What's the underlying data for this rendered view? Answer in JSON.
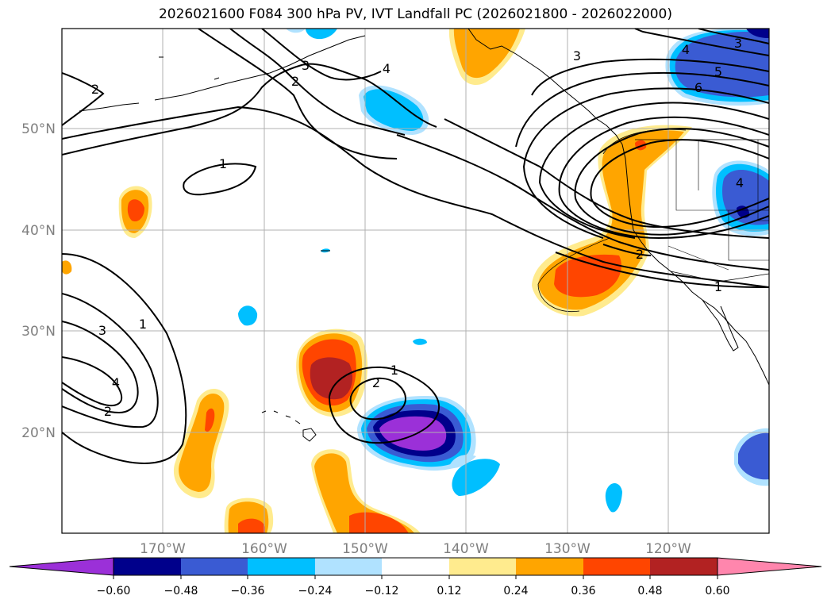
{
  "title": "2026021600 F084 300 hPa PV, IVT Landfall PC (2026021800 - 2026022000)",
  "map": {
    "lat_labels": [
      "50°N",
      "40°N",
      "30°N",
      "20°N"
    ],
    "lon_labels": [
      "170°W",
      "160°W",
      "150°W",
      "140°W",
      "130°W",
      "120°W"
    ],
    "contour_labels": [
      "2",
      "3",
      "2",
      "4",
      "3",
      "3",
      "4",
      "5",
      "6",
      "1",
      "2",
      "1",
      "3",
      "4",
      "2",
      "1",
      "2",
      "1",
      "4"
    ]
  },
  "colorbar": {
    "ticks": [
      "−0.60",
      "−0.48",
      "−0.36",
      "−0.24",
      "−0.12",
      "0.12",
      "0.24",
      "0.36",
      "0.48",
      "0.60"
    ],
    "colors": [
      "#9b30d8",
      "#00008b",
      "#3a5bd3",
      "#00bfff",
      "#b0e2ff",
      "#ffffff",
      "#ffeb8e",
      "#ffa500",
      "#ff4500",
      "#b22222",
      "#ff86ad"
    ]
  },
  "colors": {
    "purple": "#9b30d8",
    "navy": "#00008b",
    "royal": "#3a5bd3",
    "cyan": "#00bfff",
    "lightblue": "#b0e2ff",
    "white": "#ffffff",
    "yellow": "#ffeb8e",
    "orange": "#ffa500",
    "redorange": "#ff4500",
    "firebrick": "#b22222",
    "pink": "#ff86ad"
  }
}
